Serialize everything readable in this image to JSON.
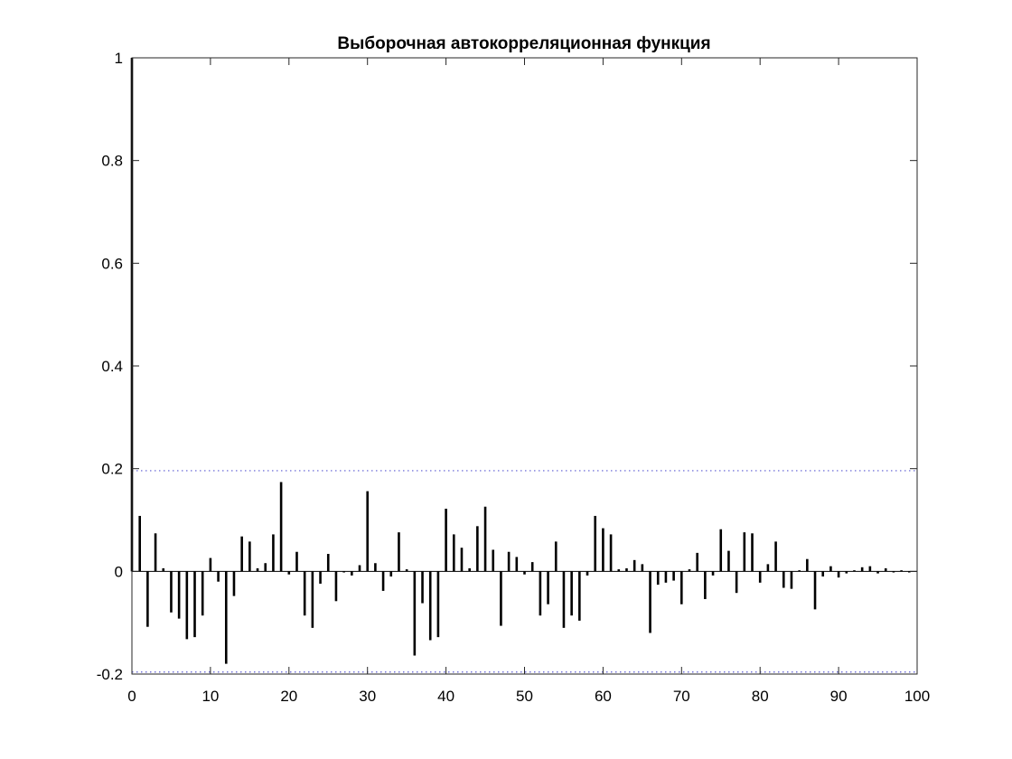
{
  "chart_data": {
    "type": "bar",
    "title": "Выборочная автокорреляционная функция",
    "xlabel": "",
    "ylabel": "",
    "xlim": [
      0,
      100
    ],
    "ylim": [
      -0.2,
      1
    ],
    "x_ticks": [
      0,
      10,
      20,
      30,
      40,
      50,
      60,
      70,
      80,
      90,
      100
    ],
    "y_ticks": [
      -0.2,
      0,
      0.2,
      0.4,
      0.6,
      0.8,
      1
    ],
    "x_tick_labels": [
      "0",
      "10",
      "20",
      "30",
      "40",
      "50",
      "60",
      "70",
      "80",
      "90",
      "100"
    ],
    "y_tick_labels": [
      "-0.2",
      "0",
      "0.2",
      "0.4",
      "0.6",
      "0.8",
      "1"
    ],
    "confidence_bounds": [
      0.196,
      -0.196
    ],
    "bar_color": "#000000",
    "bound_color": "#5a5ad2",
    "grid": false,
    "legend": "none",
    "lags": [
      0,
      1,
      2,
      3,
      4,
      5,
      6,
      7,
      8,
      9,
      10,
      11,
      12,
      13,
      14,
      15,
      16,
      17,
      18,
      19,
      20,
      21,
      22,
      23,
      24,
      25,
      26,
      27,
      28,
      29,
      30,
      31,
      32,
      33,
      34,
      35,
      36,
      37,
      38,
      39,
      40,
      41,
      42,
      43,
      44,
      45,
      46,
      47,
      48,
      49,
      50,
      51,
      52,
      53,
      54,
      55,
      56,
      57,
      58,
      59,
      60,
      61,
      62,
      63,
      64,
      65,
      66,
      67,
      68,
      69,
      70,
      71,
      72,
      73,
      74,
      75,
      76,
      77,
      78,
      79,
      80,
      81,
      82,
      83,
      84,
      85,
      86,
      87,
      88,
      89,
      90,
      91,
      92,
      93,
      94,
      95,
      96,
      97,
      98,
      99
    ],
    "values": [
      1.0,
      0.108,
      -0.108,
      0.074,
      0.006,
      -0.08,
      -0.092,
      -0.132,
      -0.128,
      -0.086,
      0.026,
      -0.02,
      -0.18,
      -0.048,
      0.068,
      0.058,
      0.006,
      0.016,
      0.072,
      0.174,
      -0.006,
      0.038,
      -0.086,
      -0.11,
      -0.024,
      0.034,
      -0.058,
      -0.002,
      -0.008,
      0.012,
      0.156,
      0.016,
      -0.038,
      -0.01,
      0.076,
      0.004,
      -0.164,
      -0.062,
      -0.134,
      -0.128,
      0.122,
      0.072,
      0.046,
      0.006,
      0.088,
      0.126,
      0.042,
      -0.106,
      0.038,
      0.028,
      -0.006,
      0.018,
      -0.086,
      -0.064,
      0.058,
      -0.11,
      -0.086,
      -0.096,
      -0.008,
      0.108,
      0.084,
      0.072,
      0.004,
      0.006,
      0.022,
      0.014,
      -0.12,
      -0.026,
      -0.022,
      -0.018,
      -0.064,
      0.004,
      0.036,
      -0.054,
      -0.008,
      0.082,
      0.04,
      -0.042,
      0.076,
      0.074,
      -0.022,
      0.014,
      0.058,
      -0.032,
      -0.034,
      0.002,
      0.024,
      -0.074,
      -0.01,
      0.01,
      -0.012,
      -0.004,
      0.002,
      0.008,
      0.01,
      -0.004,
      0.006,
      -0.002,
      0.002,
      -0.002
    ]
  }
}
